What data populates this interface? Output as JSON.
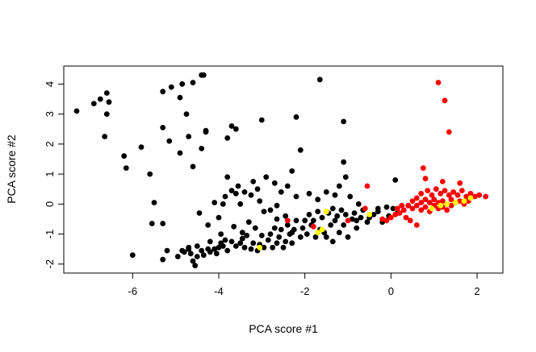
{
  "chart_data": {
    "type": "scatter",
    "xlabel": "PCA score #1",
    "ylabel": "PCA score #2",
    "xlim": [
      -7.6,
      2.6
    ],
    "ylim": [
      -2.3,
      4.6
    ],
    "xticks": [
      -6,
      -4,
      -2,
      0,
      2
    ],
    "xtick_labels": [
      "-6",
      "-4",
      "-2",
      "0",
      "2"
    ],
    "yticks": [
      -2,
      -1,
      0,
      1,
      2,
      3,
      4
    ],
    "ytick_labels": [
      "-2",
      "-1",
      "0",
      "1",
      "2",
      "3",
      "4"
    ],
    "grid": false,
    "series": [
      {
        "color": "#000000",
        "points": [
          [
            -7.3,
            3.1
          ],
          [
            -6.9,
            3.35
          ],
          [
            -6.75,
            3.5
          ],
          [
            -6.6,
            3.7
          ],
          [
            -6.55,
            3.4
          ],
          [
            -6.6,
            3.0
          ],
          [
            -6.65,
            2.25
          ],
          [
            -6.2,
            1.6
          ],
          [
            -6.15,
            1.2
          ],
          [
            -6.0,
            -1.7
          ],
          [
            -5.8,
            1.9
          ],
          [
            -5.6,
            1.0
          ],
          [
            -5.5,
            0.05
          ],
          [
            -5.55,
            -0.65
          ],
          [
            -5.3,
            3.75
          ],
          [
            -5.1,
            3.9
          ],
          [
            -4.85,
            4.0
          ],
          [
            -4.6,
            4.05
          ],
          [
            -4.4,
            4.3
          ],
          [
            -4.35,
            4.3
          ],
          [
            -4.9,
            3.55
          ],
          [
            -4.75,
            3.0
          ],
          [
            -5.3,
            2.55
          ],
          [
            -5.15,
            2.1
          ],
          [
            -4.9,
            1.7
          ],
          [
            -4.7,
            2.25
          ],
          [
            -4.6,
            1.25
          ],
          [
            -4.4,
            1.85
          ],
          [
            -5.3,
            -0.65
          ],
          [
            -5.3,
            -1.85
          ],
          [
            -5.2,
            -1.55
          ],
          [
            -4.95,
            -1.75
          ],
          [
            -4.8,
            -1.6
          ],
          [
            -4.7,
            -1.5
          ],
          [
            -4.6,
            -1.9
          ],
          [
            -4.55,
            -2.05
          ],
          [
            -4.5,
            -1.4
          ],
          [
            -4.4,
            -1.55
          ],
          [
            -4.35,
            -1.7
          ],
          [
            -4.25,
            -1.5
          ],
          [
            -4.2,
            -1.6
          ],
          [
            -4.1,
            -1.5
          ],
          [
            -4.05,
            -1.65
          ],
          [
            -4.0,
            -1.45
          ],
          [
            -3.95,
            -1.3
          ],
          [
            -3.9,
            -1.4
          ],
          [
            -3.85,
            -1.2
          ],
          [
            -3.8,
            -1.55
          ],
          [
            -3.7,
            -1.25
          ],
          [
            -3.6,
            -1.4
          ],
          [
            -3.5,
            -1.3
          ],
          [
            -3.45,
            -1.15
          ],
          [
            -3.4,
            -1.45
          ],
          [
            -3.35,
            -1.05
          ],
          [
            -3.25,
            -1.5
          ],
          [
            -3.2,
            -1.3
          ],
          [
            -3.1,
            -1.55
          ],
          [
            -3.05,
            -1.35
          ],
          [
            -3.0,
            -1.05
          ],
          [
            -2.95,
            -1.45
          ],
          [
            -2.85,
            -1.2
          ],
          [
            -2.8,
            -1.0
          ],
          [
            -2.75,
            -1.45
          ],
          [
            -2.7,
            -0.8
          ],
          [
            -2.65,
            -1.3
          ],
          [
            -2.6,
            -1.1
          ],
          [
            -2.55,
            -0.85
          ],
          [
            -2.5,
            -1.45
          ],
          [
            -2.45,
            -1.25
          ],
          [
            -2.4,
            -0.7
          ],
          [
            -2.35,
            -1.0
          ],
          [
            -2.3,
            -1.3
          ],
          [
            -2.25,
            -0.85
          ],
          [
            -2.2,
            -0.55
          ],
          [
            -2.1,
            -1.1
          ],
          [
            -2.05,
            -0.8
          ],
          [
            -2.0,
            -0.55
          ],
          [
            -1.95,
            -1.0
          ],
          [
            -1.9,
            -0.35
          ],
          [
            -1.85,
            -0.7
          ],
          [
            -1.8,
            -0.55
          ],
          [
            -1.7,
            -0.25
          ],
          [
            -1.65,
            -0.85
          ],
          [
            -1.6,
            -0.45
          ],
          [
            -1.5,
            -1.1
          ],
          [
            -1.45,
            -0.3
          ],
          [
            -1.4,
            -0.7
          ],
          [
            -1.35,
            -0.15
          ],
          [
            -1.3,
            -0.55
          ],
          [
            -1.25,
            -0.4
          ],
          [
            -1.2,
            -0.95
          ],
          [
            -1.15,
            -0.2
          ],
          [
            -1.1,
            -0.7
          ],
          [
            -1.05,
            -0.35
          ],
          [
            -1.0,
            -1.1
          ],
          [
            -0.95,
            0.25
          ],
          [
            -0.9,
            -0.5
          ],
          [
            -0.85,
            -0.3
          ],
          [
            -0.8,
            -0.8
          ],
          [
            -0.75,
            0.0
          ],
          [
            -0.7,
            -0.45
          ],
          [
            -0.65,
            -0.2
          ],
          [
            -0.55,
            -0.6
          ],
          [
            -0.3,
            -0.25
          ],
          [
            -0.2,
            -0.6
          ],
          [
            -0.1,
            -0.1
          ],
          [
            -0.05,
            -0.4
          ],
          [
            0.05,
            -0.15
          ],
          [
            0.1,
            0.8
          ],
          [
            0.15,
            -0.3
          ],
          [
            -1.1,
            2.75
          ],
          [
            -1.65,
            4.15
          ],
          [
            -2.2,
            2.9
          ],
          [
            -2.1,
            1.8
          ],
          [
            -2.3,
            1.1
          ],
          [
            -2.4,
            0.6
          ],
          [
            -2.7,
            0.7
          ],
          [
            -2.9,
            0.9
          ],
          [
            -3.1,
            0.5
          ],
          [
            -3.2,
            0.75
          ],
          [
            -3.0,
            2.8
          ],
          [
            -3.6,
            2.5
          ],
          [
            -3.7,
            2.6
          ],
          [
            -3.8,
            2.2
          ],
          [
            -4.3,
            2.45
          ],
          [
            -4.3,
            2.4
          ],
          [
            -4.1,
            0.05
          ],
          [
            -4.45,
            -0.3
          ],
          [
            -4.25,
            -0.7
          ],
          [
            -4.0,
            -0.45
          ],
          [
            -3.9,
            0.0
          ],
          [
            -3.85,
            0.25
          ],
          [
            -3.8,
            0.9
          ],
          [
            -3.7,
            0.45
          ],
          [
            -3.6,
            0.35
          ],
          [
            -3.55,
            0.6
          ],
          [
            -3.5,
            0.0
          ],
          [
            -3.4,
            0.4
          ],
          [
            -3.3,
            -0.6
          ],
          [
            -3.25,
            0.3
          ],
          [
            -3.15,
            -0.8
          ],
          [
            -3.05,
            0.1
          ],
          [
            -2.8,
            -0.2
          ],
          [
            -2.65,
            -0.5
          ],
          [
            -2.55,
            0.4
          ],
          [
            -2.45,
            -0.4
          ],
          [
            -2.2,
            0.25
          ],
          [
            -1.9,
            0.35
          ],
          [
            -1.7,
            0.15
          ],
          [
            -1.5,
            0.4
          ],
          [
            -1.3,
            0.3
          ],
          [
            -1.1,
            1.4
          ],
          [
            -1.05,
            0.9
          ],
          [
            -1.2,
            0.6
          ],
          [
            -0.8,
            -0.55
          ],
          [
            -0.5,
            -0.45
          ],
          [
            -0.4,
            -0.35
          ],
          [
            -0.3,
            -0.15
          ],
          [
            -2.65,
            -0.05
          ],
          [
            -2.95,
            -0.25
          ],
          [
            -3.45,
            -0.95
          ],
          [
            -3.65,
            -0.75
          ],
          [
            -3.95,
            -1.0
          ],
          [
            -4.2,
            -1.25
          ],
          [
            -4.7,
            -1.45
          ],
          [
            -4.85,
            -1.55
          ],
          [
            -4.65,
            -1.65
          ],
          [
            -4.5,
            -1.75
          ],
          [
            -2.3,
            -0.95
          ],
          [
            -1.75,
            -1.1
          ],
          [
            -1.55,
            -0.95
          ],
          [
            -1.35,
            -1.25
          ]
        ]
      },
      {
        "color": "#ff0000",
        "points": [
          [
            1.1,
            4.05
          ],
          [
            1.25,
            3.45
          ],
          [
            1.35,
            2.4
          ],
          [
            0.75,
            1.2
          ],
          [
            0.8,
            0.85
          ],
          [
            1.2,
            0.75
          ],
          [
            1.6,
            0.7
          ],
          [
            0.7,
            0.35
          ],
          [
            0.85,
            0.45
          ],
          [
            0.95,
            0.3
          ],
          [
            1.05,
            0.5
          ],
          [
            1.15,
            0.35
          ],
          [
            1.25,
            0.45
          ],
          [
            1.35,
            0.3
          ],
          [
            1.45,
            0.4
          ],
          [
            1.55,
            0.3
          ],
          [
            1.65,
            0.45
          ],
          [
            1.75,
            0.25
          ],
          [
            1.85,
            0.35
          ],
          [
            1.95,
            0.25
          ],
          [
            2.05,
            0.3
          ],
          [
            2.2,
            0.25
          ],
          [
            0.5,
            0.1
          ],
          [
            0.6,
            0.2
          ],
          [
            0.7,
            0.05
          ],
          [
            0.8,
            0.15
          ],
          [
            0.9,
            0.05
          ],
          [
            1.0,
            0.15
          ],
          [
            1.1,
            0.05
          ],
          [
            1.2,
            0.1
          ],
          [
            1.3,
            0.0
          ],
          [
            1.4,
            0.15
          ],
          [
            1.5,
            0.05
          ],
          [
            1.6,
            0.1
          ],
          [
            1.7,
            0.0
          ],
          [
            1.8,
            0.1
          ],
          [
            0.4,
            -0.05
          ],
          [
            0.5,
            -0.15
          ],
          [
            0.6,
            -0.05
          ],
          [
            0.7,
            -0.2
          ],
          [
            0.8,
            -0.1
          ],
          [
            0.9,
            -0.25
          ],
          [
            1.0,
            -0.05
          ],
          [
            1.1,
            -0.15
          ],
          [
            1.2,
            -0.1
          ],
          [
            1.3,
            -0.2
          ],
          [
            1.4,
            -0.05
          ],
          [
            0.3,
            -0.2
          ],
          [
            0.2,
            -0.3
          ],
          [
            0.1,
            -0.35
          ],
          [
            0.0,
            -0.45
          ],
          [
            -0.1,
            -0.55
          ],
          [
            -0.2,
            -0.5
          ],
          [
            0.6,
            -0.7
          ],
          [
            0.45,
            -0.55
          ],
          [
            0.35,
            -0.45
          ],
          [
            -0.55,
            0.6
          ],
          [
            -1.5,
            -0.25
          ],
          [
            -1.8,
            -0.75
          ],
          [
            -2.4,
            -0.55
          ],
          [
            -1.0,
            -0.55
          ],
          [
            -0.6,
            -0.15
          ],
          [
            0.25,
            -0.05
          ],
          [
            0.15,
            -0.15
          ]
        ]
      },
      {
        "color": "#ffff00",
        "points": [
          [
            1.85,
            0.2
          ],
          [
            1.7,
            0.1
          ],
          [
            1.5,
            0.05
          ],
          [
            1.3,
            0.0
          ],
          [
            1.15,
            -0.05
          ],
          [
            0.95,
            -0.15
          ],
          [
            -1.5,
            -0.25
          ],
          [
            -1.6,
            -0.85
          ],
          [
            -1.7,
            -0.95
          ],
          [
            -3.05,
            -1.45
          ],
          [
            -0.5,
            -0.35
          ]
        ]
      }
    ]
  }
}
